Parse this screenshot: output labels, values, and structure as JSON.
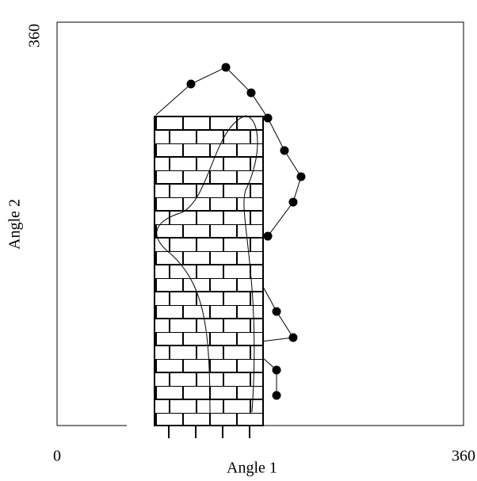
{
  "chart_data": {
    "type": "line",
    "xlabel": "Angle 1",
    "ylabel": "Angle 2",
    "xlim": [
      0,
      360
    ],
    "ylim": [
      0,
      360
    ],
    "xticks": [
      0,
      360
    ],
    "yticks": [
      360
    ],
    "color": "#000000",
    "series": [
      {
        "x": [
          87.6,
          118.6,
          149.5,
          171.9,
          186.7,
          201.4,
          216.1,
          209.1,
          186.7,
          null,
          182.5,
          194.4,
          209.1,
          182.5,
          null,
          182.5,
          194.4,
          194.4
        ],
        "values": [
          277.2,
          304.8,
          319.7,
          297,
          274.4,
          245.4,
          222.1,
          199.4,
          169,
          null,
          123.8,
          101.8,
          78.5,
          75.2,
          null,
          60.1,
          49.5,
          26.9
        ]
      },
      {
        "x": [
          118.6,
          149.5,
          171.9,
          186.7,
          201.4,
          216.1,
          209.1,
          186.7,
          194.4,
          209.1,
          194.4,
          194.4
        ],
        "values": [
          304.8,
          319.7,
          297,
          274.4,
          245.4,
          222.1,
          199.4,
          169,
          101.8,
          78.5,
          49.5,
          26.9
        ],
        "markers": true
      }
    ]
  }
}
